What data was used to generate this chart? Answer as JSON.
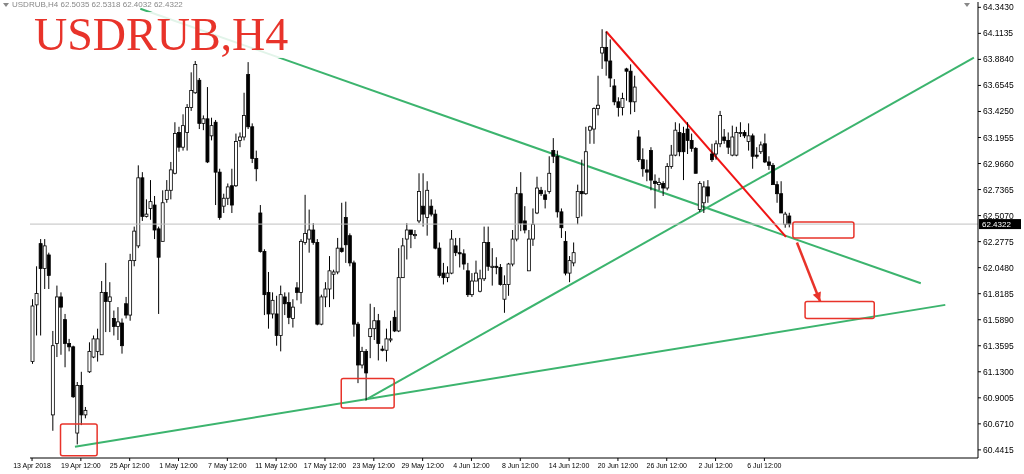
{
  "chart_data": {
    "type": "candlestick",
    "title": "USDRUB,H4",
    "subtitle": "USDRUB,H4  62.5035 62.5318 62.4032 62.4322",
    "categories": [
      "13 Apr 2018",
      null,
      null,
      null,
      null,
      null,
      null,
      null,
      null,
      null,
      null,
      null,
      "19 Apr 12:00",
      null,
      null,
      null,
      null,
      null,
      null,
      null,
      null,
      null,
      null,
      null,
      "25 Apr 12:00",
      null,
      null,
      null,
      null,
      null,
      null,
      null,
      null,
      null,
      null,
      null,
      "1 May 12:00",
      null,
      null,
      null,
      null,
      null,
      null,
      null,
      null,
      null,
      null,
      null,
      "7 May 12:00",
      null,
      null,
      null,
      null,
      null,
      null,
      null,
      null,
      null,
      null,
      null,
      "11 May 12:00",
      null,
      null,
      null,
      null,
      null,
      null,
      null,
      null,
      null,
      null,
      null,
      "17 May 12:00",
      null,
      null,
      null,
      null,
      null,
      null,
      null,
      null,
      null,
      null,
      null,
      "23 May 12:00",
      null,
      null,
      null,
      null,
      null,
      null,
      null,
      null,
      null,
      null,
      null,
      "29 May 12:00",
      null,
      null,
      null,
      null,
      null,
      null,
      null,
      null,
      null,
      null,
      null,
      "4 Jun 12:00",
      null,
      null,
      null,
      null,
      null,
      null,
      null,
      null,
      null,
      null,
      null,
      "8 Jun 12:00",
      null,
      null,
      null,
      null,
      null,
      null,
      null,
      null,
      null,
      null,
      null,
      "14 Jun 12:00",
      null,
      null,
      null,
      null,
      null,
      null,
      null,
      null,
      null,
      null,
      null,
      "20 Jun 12:00",
      null,
      null,
      null,
      null,
      null,
      null,
      null,
      null,
      null,
      null,
      null,
      "26 Jun 12:00",
      null,
      null,
      null,
      null,
      null,
      null,
      null,
      null,
      null,
      null,
      null,
      "2 Jul 12:00",
      null,
      null,
      null,
      null,
      null,
      null,
      null,
      null,
      null,
      null,
      null,
      "6 Jul 12:00",
      null,
      null,
      null,
      null,
      null,
      null,
      null,
      null,
      null,
      null,
      null,
      null,
      null,
      null,
      null,
      null,
      null,
      null,
      null,
      null,
      null,
      null,
      null,
      null,
      null,
      null,
      null,
      null,
      null,
      null,
      null,
      null,
      null,
      null,
      null,
      null,
      null,
      null,
      null,
      null,
      null,
      null,
      null,
      null,
      null,
      null,
      null,
      null,
      null,
      null,
      null,
      null
    ],
    "ohlc": [
      [
        61.22,
        61.77,
        61.2,
        61.71
      ],
      [
        61.72,
        62.06,
        61.45,
        61.82
      ],
      [
        62.26,
        62.3,
        61.45,
        62.04
      ],
      [
        62.04,
        62.3,
        61.86,
        62.24
      ],
      [
        62.16,
        62.18,
        61.86,
        61.98
      ],
      [
        60.75,
        61.49,
        60.61,
        61.36
      ],
      [
        61.38,
        61.89,
        61.26,
        61.79
      ],
      [
        61.79,
        61.83,
        61.28,
        61.7
      ],
      [
        61.59,
        61.64,
        61.17,
        61.38
      ],
      [
        61.38,
        61.42,
        61.31,
        61.35
      ],
      [
        61.35,
        61.36,
        60.9,
        60.91
      ],
      [
        60.59,
        61.04,
        60.49,
        61.01
      ],
      [
        61.01,
        61.13,
        60.66,
        60.75
      ],
      [
        60.75,
        60.82,
        60.72,
        60.79
      ],
      [
        61.13,
        61.39,
        61.12,
        61.31
      ],
      [
        61.26,
        61.45,
        61.25,
        61.42
      ],
      [
        61.31,
        61.51,
        61.22,
        61.42
      ],
      [
        61.28,
        61.93,
        61.28,
        61.83
      ],
      [
        61.83,
        62.09,
        61.48,
        61.75
      ],
      [
        61.75,
        61.92,
        61.48,
        61.79
      ],
      [
        61.6,
        61.67,
        61.45,
        61.53
      ],
      [
        61.53,
        61.7,
        61.41,
        61.57
      ],
      [
        61.56,
        61.6,
        61.29,
        61.36
      ],
      [
        61.73,
        61.79,
        61.6,
        61.63
      ],
      [
        61.63,
        62.17,
        61.58,
        62.11
      ],
      [
        62.11,
        62.41,
        62.06,
        62.37
      ],
      [
        62.24,
        62.95,
        62.22,
        62.84
      ],
      [
        62.84,
        62.89,
        62.46,
        62.5
      ],
      [
        62.5,
        62.65,
        62.49,
        62.52
      ],
      [
        62.57,
        62.82,
        62.47,
        62.63
      ],
      [
        62.6,
        62.68,
        62.3,
        62.38
      ],
      [
        62.39,
        62.41,
        61.64,
        62.14
      ],
      [
        62.28,
        62.73,
        62.28,
        62.62
      ],
      [
        62.65,
        62.82,
        62.62,
        62.73
      ],
      [
        62.73,
        62.98,
        62.65,
        62.91
      ],
      [
        62.88,
        63.33,
        62.87,
        63.23
      ],
      [
        63.24,
        63.29,
        63.07,
        63.11
      ],
      [
        63.11,
        63.4,
        63.08,
        63.3
      ],
      [
        63.24,
        63.49,
        63.08,
        63.46
      ],
      [
        63.46,
        63.77,
        63.43,
        63.61
      ],
      [
        63.59,
        63.87,
        63.58,
        63.84
      ],
      [
        63.7,
        63.72,
        63.27,
        63.32
      ],
      [
        63.32,
        63.39,
        63.26,
        63.36
      ],
      [
        63.36,
        63.64,
        62.97,
        62.98
      ],
      [
        63.21,
        63.37,
        63.17,
        63.3
      ],
      [
        63.33,
        63.35,
        62.6,
        62.89
      ],
      [
        62.89,
        62.92,
        62.47,
        62.49
      ],
      [
        62.59,
        62.7,
        62.53,
        62.66
      ],
      [
        62.66,
        62.79,
        62.6,
        62.76
      ],
      [
        62.77,
        62.92,
        62.53,
        62.6
      ],
      [
        62.77,
        63.23,
        62.76,
        63.16
      ],
      [
        63.17,
        63.24,
        63.11,
        63.2
      ],
      [
        63.2,
        63.59,
        63.17,
        63.39
      ],
      [
        63.75,
        63.86,
        63.27,
        63.29
      ],
      [
        63.29,
        63.32,
        62.97,
        63.01
      ],
      [
        63.01,
        63.08,
        62.81,
        62.92
      ],
      [
        62.53,
        62.6,
        62.18,
        62.19
      ],
      [
        62.19,
        62.21,
        61.63,
        61.81
      ],
      [
        61.83,
        62.01,
        61.51,
        61.64
      ],
      [
        61.64,
        61.83,
        61.6,
        61.76
      ],
      [
        61.64,
        61.8,
        61.36,
        61.45
      ],
      [
        61.45,
        61.89,
        61.31,
        61.81
      ],
      [
        61.79,
        61.83,
        61.63,
        61.73
      ],
      [
        61.74,
        61.83,
        61.55,
        61.61
      ],
      [
        61.6,
        61.77,
        61.52,
        61.7
      ],
      [
        61.87,
        61.92,
        61.76,
        61.83
      ],
      [
        61.83,
        62.3,
        61.73,
        62.28
      ],
      [
        62.27,
        62.69,
        62.25,
        62.35
      ],
      [
        62.3,
        62.56,
        62.18,
        62.38
      ],
      [
        62.38,
        62.44,
        62.25,
        62.27
      ],
      [
        62.27,
        62.3,
        61.54,
        61.55
      ],
      [
        61.55,
        61.81,
        61.54,
        61.79
      ],
      [
        61.79,
        61.92,
        61.7,
        61.86
      ],
      [
        61.86,
        62.15,
        61.7,
        62.02
      ],
      [
        61.99,
        62.03,
        61.77,
        62.01
      ],
      [
        62.01,
        62.31,
        61.99,
        62.22
      ],
      [
        62.22,
        62.62,
        62.18,
        62.19
      ],
      [
        62.49,
        62.63,
        62.09,
        62.25
      ],
      [
        62.33,
        62.35,
        62.06,
        62.09
      ],
      [
        62.09,
        62.11,
        61.44,
        61.55
      ],
      [
        61.55,
        61.57,
        61.03,
        61.19
      ],
      [
        61.19,
        61.35,
        61.16,
        61.31
      ],
      [
        61.31,
        61.33,
        60.88,
        61.12
      ],
      [
        61.44,
        61.73,
        61.25,
        61.51
      ],
      [
        61.51,
        61.7,
        61.41,
        61.58
      ],
      [
        61.58,
        61.64,
        61.23,
        61.38
      ],
      [
        61.33,
        61.36,
        61.31,
        61.32
      ],
      [
        61.32,
        61.51,
        61.22,
        61.42
      ],
      [
        61.41,
        61.58,
        61.39,
        61.42
      ],
      [
        61.61,
        61.67,
        61.48,
        61.49
      ],
      [
        61.49,
        62.22,
        61.48,
        61.96
      ],
      [
        61.96,
        62.31,
        61.96,
        62.24
      ],
      [
        62.3,
        62.44,
        62.12,
        62.38
      ],
      [
        62.38,
        62.38,
        62.22,
        62.34
      ],
      [
        62.33,
        62.38,
        62.3,
        62.34
      ],
      [
        62.46,
        62.88,
        62.44,
        62.72
      ],
      [
        62.59,
        62.88,
        62.41,
        62.52
      ],
      [
        62.49,
        62.81,
        62.33,
        62.73
      ],
      [
        62.59,
        62.65,
        62.5,
        62.52
      ],
      [
        62.52,
        62.56,
        62.21,
        62.22
      ],
      [
        62.22,
        62.27,
        61.96,
        61.98
      ],
      [
        62.0,
        62.09,
        61.9,
        61.96
      ],
      [
        61.96,
        62.06,
        61.92,
        62.0
      ],
      [
        62.0,
        62.38,
        61.99,
        62.3
      ],
      [
        62.24,
        62.31,
        62.15,
        62.18
      ],
      [
        62.18,
        62.31,
        62.05,
        62.17
      ],
      [
        62.17,
        62.21,
        62.03,
        62.08
      ],
      [
        62.02,
        62.09,
        61.79,
        61.81
      ],
      [
        61.81,
        62.0,
        61.79,
        61.93
      ],
      [
        61.93,
        62.11,
        61.93,
        62.0
      ],
      [
        61.84,
        62.03,
        61.83,
        61.95
      ],
      [
        61.95,
        62.41,
        61.93,
        62.27
      ],
      [
        62.27,
        62.41,
        62.02,
        62.06
      ],
      [
        62.05,
        62.22,
        61.89,
        62.06
      ],
      [
        62.06,
        62.14,
        61.99,
        62.05
      ],
      [
        62.05,
        62.08,
        61.89,
        61.9
      ],
      [
        61.77,
        61.98,
        61.65,
        61.9
      ],
      [
        61.9,
        62.09,
        61.8,
        62.08
      ],
      [
        62.08,
        62.38,
        62.06,
        62.3
      ],
      [
        62.3,
        62.76,
        62.28,
        62.7
      ],
      [
        62.7,
        62.89,
        62.37,
        62.44
      ],
      [
        62.46,
        62.59,
        62.35,
        62.38
      ],
      [
        62.02,
        62.38,
        62.02,
        62.3
      ],
      [
        62.3,
        62.57,
        62.24,
        62.43
      ],
      [
        62.53,
        62.85,
        62.52,
        62.75
      ],
      [
        62.73,
        62.76,
        62.68,
        62.7
      ],
      [
        62.69,
        62.73,
        62.57,
        62.65
      ],
      [
        62.72,
        63.03,
        62.7,
        62.88
      ],
      [
        63.08,
        63.19,
        62.97,
        63.03
      ],
      [
        63.03,
        63.08,
        62.49,
        62.54
      ],
      [
        62.54,
        62.57,
        62.31,
        62.4
      ],
      [
        62.28,
        62.37,
        61.98,
        62.0
      ],
      [
        62.0,
        62.15,
        61.92,
        62.11
      ],
      [
        62.09,
        62.27,
        62.06,
        62.18
      ],
      [
        62.49,
        62.78,
        62.43,
        62.72
      ],
      [
        62.72,
        63.0,
        62.5,
        62.7
      ],
      [
        62.7,
        63.29,
        62.69,
        63.07
      ],
      [
        63.26,
        63.3,
        63.14,
        63.29
      ],
      [
        63.27,
        63.46,
        63.14,
        63.45
      ],
      [
        63.45,
        63.74,
        63.39,
        63.48
      ],
      [
        63.94,
        64.15,
        63.8,
        63.99
      ],
      [
        63.99,
        64.13,
        63.74,
        63.87
      ],
      [
        63.87,
        64.06,
        63.64,
        63.72
      ],
      [
        63.65,
        63.71,
        63.48,
        63.51
      ],
      [
        63.51,
        63.55,
        63.38,
        63.46
      ],
      [
        63.46,
        63.59,
        63.39,
        63.54
      ],
      [
        63.8,
        63.81,
        63.52,
        63.78
      ],
      [
        63.78,
        63.84,
        63.4,
        63.51
      ],
      [
        63.51,
        63.74,
        63.42,
        63.64
      ],
      [
        63.2,
        63.26,
        62.98,
        63.0
      ],
      [
        63.0,
        63.1,
        62.85,
        62.92
      ],
      [
        62.91,
        63.0,
        62.81,
        62.89
      ],
      [
        63.08,
        63.11,
        62.73,
        62.82
      ],
      [
        62.81,
        62.87,
        62.57,
        62.79
      ],
      [
        62.78,
        62.84,
        62.73,
        62.8
      ],
      [
        62.79,
        62.81,
        62.68,
        62.75
      ],
      [
        62.75,
        62.97,
        62.73,
        62.94
      ],
      [
        62.94,
        63.13,
        62.92,
        63.04
      ],
      [
        63.04,
        63.33,
        63.03,
        63.26
      ],
      [
        63.24,
        63.32,
        63.03,
        63.07
      ],
      [
        63.23,
        63.29,
        62.82,
        63.07
      ],
      [
        63.27,
        63.33,
        63.05,
        63.17
      ],
      [
        63.17,
        63.23,
        63.07,
        63.1
      ],
      [
        63.1,
        63.11,
        62.88,
        62.88
      ],
      [
        62.56,
        62.81,
        62.54,
        62.79
      ],
      [
        62.62,
        62.81,
        62.53,
        62.76
      ],
      [
        62.76,
        62.82,
        62.62,
        62.68
      ],
      [
        63.05,
        63.14,
        62.98,
        63.0
      ],
      [
        63.05,
        63.17,
        63.0,
        63.14
      ],
      [
        63.14,
        63.43,
        63.11,
        63.39
      ],
      [
        63.2,
        63.27,
        63.14,
        63.17
      ],
      [
        63.17,
        63.24,
        63.05,
        63.11
      ],
      [
        63.04,
        63.3,
        63.03,
        63.2
      ],
      [
        63.04,
        63.29,
        63.03,
        63.24
      ],
      [
        63.23,
        63.33,
        63.2,
        63.24
      ],
      [
        63.24,
        63.26,
        63.19,
        63.21
      ],
      [
        63.16,
        63.32,
        63.08,
        63.21
      ],
      [
        63.21,
        63.23,
        62.92,
        63.03
      ],
      [
        63.04,
        63.11,
        63.01,
        63.03
      ],
      [
        63.07,
        63.16,
        63.05,
        63.13
      ],
      [
        63.14,
        63.23,
        62.97,
        62.98
      ],
      [
        62.98,
        63.03,
        62.91,
        62.95
      ],
      [
        62.95,
        62.97,
        62.78,
        62.78
      ],
      [
        62.78,
        62.81,
        62.62,
        62.7
      ],
      [
        62.7,
        62.81,
        62.53,
        62.53
      ],
      [
        62.43,
        62.54,
        62.4,
        62.52
      ],
      [
        62.5035,
        62.5318,
        62.4032,
        62.4322
      ],
      null,
      null,
      null,
      null,
      null,
      null,
      null,
      null,
      null,
      null,
      null,
      null,
      null,
      null,
      null,
      null,
      null,
      null,
      null,
      null,
      null,
      null,
      null,
      null,
      null,
      null,
      null,
      null,
      null,
      null,
      null,
      null,
      null,
      null,
      null,
      null,
      null,
      null,
      null,
      null,
      null,
      null,
      null,
      null,
      null,
      null
    ],
    "series": [
      {
        "type": "line",
        "color": "#3cb46e",
        "values": [
          null,
          null,
          null,
          null,
          null,
          null,
          null,
          null,
          null,
          null,
          null,
          null,
          null,
          null,
          null,
          null,
          null,
          null,
          null,
          null,
          null,
          null,
          null,
          null,
          null,
          null,
          null,
          64.33,
          null,
          null,
          null,
          null,
          null,
          null,
          null,
          null,
          null,
          null,
          null,
          null,
          null,
          null,
          null,
          null,
          null,
          null,
          null,
          null,
          null,
          null,
          null,
          null,
          null,
          null,
          null,
          null,
          null,
          null,
          null,
          null,
          null,
          null,
          null,
          null,
          null,
          null,
          null,
          null,
          null,
          null,
          null,
          null,
          null,
          null,
          null,
          null,
          null,
          null,
          null,
          null,
          null,
          null,
          null,
          null,
          null,
          null,
          null,
          null,
          null,
          null,
          null,
          null,
          null,
          null,
          null,
          null,
          null,
          null,
          null,
          null,
          null,
          null,
          null,
          null,
          null,
          null,
          null,
          null,
          null,
          null,
          null,
          null,
          null,
          null,
          null,
          null,
          null,
          null,
          null,
          null,
          null,
          null,
          null,
          null,
          null,
          null,
          null,
          null,
          null,
          null,
          null,
          null,
          null,
          null,
          null,
          null,
          null,
          null,
          null,
          null,
          null,
          null,
          null,
          null,
          null,
          null,
          null,
          null,
          null,
          null,
          null,
          null,
          null,
          null,
          null,
          null,
          null,
          null,
          null,
          null,
          null,
          null,
          null,
          null,
          null,
          null,
          null,
          null,
          null,
          null,
          null,
          null,
          null,
          null,
          null,
          null,
          null,
          null,
          null,
          null,
          null,
          null,
          null,
          null,
          null,
          null,
          null,
          null,
          null,
          null,
          null,
          null,
          null,
          null,
          null,
          null,
          null,
          null,
          null,
          null,
          null,
          null,
          null,
          null,
          null,
          null,
          null,
          null,
          null,
          null,
          null,
          null,
          null,
          null,
          null,
          null,
          null,
          null,
          61.91,
          null,
          null,
          null,
          null,
          null,
          null,
          null,
          null,
          null,
          null,
          null,
          null,
          null,
          null
        ]
      },
      {
        "type": "line",
        "color": "#3cb46e",
        "values": [
          null,
          null,
          null,
          null,
          null,
          null,
          null,
          null,
          null,
          null,
          null,
          60.47,
          null,
          null,
          null,
          null,
          null,
          null,
          null,
          null,
          null,
          null,
          null,
          null,
          null,
          null,
          null,
          null,
          null,
          null,
          null,
          null,
          null,
          null,
          null,
          null,
          null,
          null,
          null,
          null,
          null,
          null,
          null,
          null,
          null,
          null,
          null,
          null,
          null,
          null,
          null,
          null,
          null,
          null,
          null,
          null,
          null,
          null,
          null,
          null,
          null,
          null,
          null,
          null,
          null,
          null,
          null,
          null,
          null,
          null,
          null,
          null,
          null,
          null,
          null,
          null,
          null,
          null,
          null,
          null,
          null,
          null,
          null,
          null,
          null,
          null,
          null,
          null,
          null,
          null,
          null,
          null,
          null,
          null,
          null,
          null,
          null,
          null,
          null,
          null,
          null,
          null,
          null,
          null,
          null,
          null,
          null,
          null,
          null,
          null,
          null,
          null,
          null,
          null,
          null,
          null,
          null,
          null,
          null,
          null,
          null,
          null,
          null,
          null,
          null,
          null,
          null,
          null,
          null,
          null,
          null,
          null,
          null,
          null,
          null,
          null,
          null,
          null,
          null,
          null,
          null,
          null,
          null,
          null,
          null,
          null,
          null,
          null,
          null,
          null,
          null,
          null,
          null,
          null,
          null,
          null,
          null,
          null,
          null,
          null,
          null,
          null,
          null,
          null,
          null,
          null,
          null,
          null,
          null,
          null,
          null,
          null,
          null,
          null,
          null,
          null,
          null,
          null,
          null,
          null,
          null,
          null,
          null,
          null,
          null,
          null,
          null,
          null,
          null,
          null,
          null,
          null,
          null,
          null,
          null,
          null,
          null,
          null,
          null,
          null,
          null,
          null,
          null,
          null,
          null,
          null,
          null,
          null,
          null,
          null,
          null,
          null,
          null,
          null,
          null,
          null,
          null,
          null,
          null,
          null,
          null,
          null,
          null,
          null,
          61.72,
          null,
          null,
          null,
          null,
          null,
          null,
          null,
          null
        ]
      },
      {
        "type": "line",
        "color": "#3cb46e",
        "values": [
          null,
          null,
          null,
          null,
          null,
          null,
          null,
          null,
          null,
          null,
          null,
          null,
          null,
          null,
          null,
          null,
          null,
          null,
          null,
          null,
          null,
          null,
          null,
          null,
          null,
          null,
          null,
          null,
          null,
          null,
          null,
          null,
          null,
          null,
          null,
          null,
          null,
          null,
          null,
          null,
          null,
          null,
          null,
          null,
          null,
          null,
          null,
          null,
          null,
          null,
          null,
          null,
          null,
          null,
          null,
          null,
          null,
          null,
          null,
          null,
          null,
          null,
          null,
          null,
          null,
          null,
          null,
          null,
          null,
          null,
          null,
          null,
          null,
          null,
          null,
          null,
          null,
          null,
          null,
          null,
          null,
          null,
          60.88,
          null,
          null,
          null,
          null,
          null,
          null,
          null,
          null,
          null,
          null,
          null,
          null,
          null,
          null,
          null,
          null,
          null,
          null,
          null,
          null,
          null,
          null,
          null,
          null,
          null,
          null,
          null,
          null,
          null,
          null,
          null,
          null,
          null,
          null,
          null,
          null,
          null,
          null,
          null,
          null,
          null,
          null,
          null,
          null,
          null,
          null,
          null,
          null,
          null,
          null,
          null,
          null,
          null,
          null,
          null,
          null,
          null,
          null,
          null,
          null,
          null,
          null,
          null,
          null,
          null,
          null,
          null,
          null,
          null,
          null,
          null,
          null,
          null,
          null,
          null,
          null,
          null,
          null,
          null,
          null,
          null,
          null,
          null,
          null,
          null,
          null,
          null,
          null,
          null,
          null,
          null,
          null,
          null,
          null,
          null,
          null,
          null,
          null,
          null,
          null,
          null,
          null,
          null,
          null,
          null,
          null,
          null,
          null,
          null,
          null,
          null,
          null,
          null,
          null,
          null,
          null,
          null,
          null,
          null,
          null,
          null,
          null,
          null,
          null,
          null,
          null,
          null,
          null,
          null,
          null,
          null,
          null,
          null,
          null,
          null,
          null,
          null,
          null,
          null,
          null,
          null,
          null,
          null,
          null,
          null,
          null,
          null,
          null,
          63.9,
          null
        ]
      },
      {
        "type": "line",
        "color": "#f01414",
        "values": [
          null,
          null,
          null,
          null,
          null,
          null,
          null,
          null,
          null,
          null,
          null,
          null,
          null,
          null,
          null,
          null,
          null,
          null,
          null,
          null,
          null,
          null,
          null,
          null,
          null,
          null,
          null,
          null,
          null,
          null,
          null,
          null,
          null,
          null,
          null,
          null,
          null,
          null,
          null,
          null,
          null,
          null,
          null,
          null,
          null,
          null,
          null,
          null,
          null,
          null,
          null,
          null,
          null,
          null,
          null,
          null,
          null,
          null,
          null,
          null,
          null,
          null,
          null,
          null,
          null,
          null,
          null,
          null,
          null,
          null,
          null,
          null,
          null,
          null,
          null,
          null,
          null,
          null,
          null,
          null,
          null,
          null,
          null,
          null,
          null,
          null,
          null,
          null,
          null,
          null,
          null,
          null,
          null,
          null,
          null,
          null,
          null,
          null,
          null,
          null,
          null,
          null,
          null,
          null,
          null,
          null,
          null,
          null,
          null,
          null,
          null,
          null,
          null,
          null,
          null,
          null,
          null,
          null,
          null,
          null,
          null,
          null,
          null,
          null,
          null,
          null,
          null,
          null,
          null,
          null,
          null,
          null,
          null,
          null,
          null,
          null,
          null,
          null,
          null,
          null,
          null,
          64.13,
          null,
          null,
          null,
          null,
          null,
          null,
          null,
          null,
          null,
          null,
          null,
          null,
          null,
          null,
          null,
          null,
          null,
          null,
          null,
          null,
          null,
          null,
          null,
          null,
          null,
          null,
          null,
          null,
          null,
          null,
          null,
          null,
          null,
          null,
          null,
          null,
          null,
          null,
          null,
          null,
          null,
          null,
          null,
          62.32,
          null,
          null,
          null,
          null,
          null,
          null,
          null,
          null,
          null,
          null,
          null,
          null,
          null,
          null,
          null,
          null,
          null,
          null,
          null,
          null,
          null,
          null,
          null,
          null,
          null,
          null,
          null,
          null,
          null,
          null,
          null,
          null,
          null,
          null,
          null,
          null,
          null,
          null,
          null,
          null,
          null,
          null,
          null,
          null,
          null,
          null,
          null
        ]
      }
    ],
    "ylim": [
      60.37,
      64.39
    ],
    "yticks": [
      {
        "value": 60.4415,
        "label": "60.4415"
      },
      {
        "value": 60.671,
        "label": "60.6710"
      },
      {
        "value": 60.9005,
        "label": "60.9005"
      },
      {
        "value": 61.13,
        "label": "61.1300"
      },
      {
        "value": 61.3595,
        "label": "61.3595"
      },
      {
        "value": 61.589,
        "label": "61.5890"
      },
      {
        "value": 61.8185,
        "label": "61.8185"
      },
      {
        "value": 62.048,
        "label": "62.0480"
      },
      {
        "value": 62.2775,
        "label": "62.2775"
      },
      {
        "value": 62.507,
        "label": "62.5070"
      },
      {
        "value": 62.7365,
        "label": "62.7365"
      },
      {
        "value": 62.966,
        "label": "62.9660"
      },
      {
        "value": 63.1955,
        "label": "63.1955"
      },
      {
        "value": 63.425,
        "label": "63.4250"
      },
      {
        "value": 63.6545,
        "label": "63.6545"
      },
      {
        "value": 63.884,
        "label": "63.8840"
      },
      {
        "value": 64.1135,
        "label": "64.1135"
      },
      {
        "value": 64.343,
        "label": "64.3430"
      }
    ],
    "ref_lines": [
      {
        "axis": "y",
        "value": 62.4322,
        "label": "62.4322",
        "color": "#c0c0c0"
      }
    ],
    "grid": false,
    "legend": false
  }
}
